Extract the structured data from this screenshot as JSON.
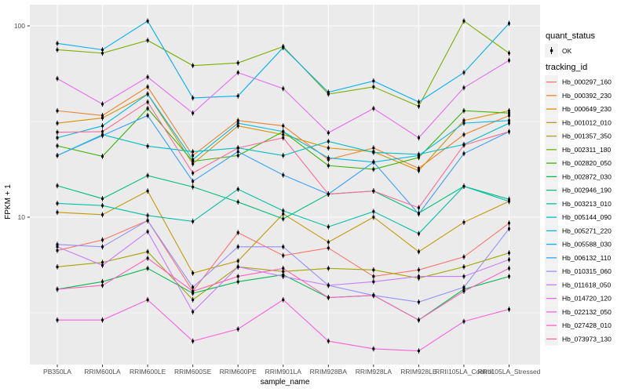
{
  "figure": {
    "x_axis_title": "sample_name",
    "y_axis_title": "FPKM + 1"
  },
  "legend": {
    "quant_status_title": "quant_status",
    "quant_status_items": [
      {
        "label": "OK",
        "glyph": "black-pointrange"
      }
    ],
    "tracking_id_title": "tracking_id"
  },
  "colors": {
    "panel_background": "#EBEBEB",
    "grid_line": "#FFFFFF",
    "legend_key_background": "#F2F2F2",
    "tick_label": "#4D4D4D",
    "axis_title": "#000000",
    "marker": "#000000"
  },
  "chart_data": {
    "type": "line",
    "title": "",
    "xlabel": "sample_name",
    "ylabel": "FPKM + 1",
    "y_scale": "log10",
    "y_tick_values": [
      10,
      100
    ],
    "y_tick_labels": [
      "10",
      "100"
    ],
    "y_minor_tick_values": [
      3.162,
      31.62
    ],
    "ylim": [
      1.68,
      128
    ],
    "grid": "white major and minor gridlines on gray panel",
    "legend_position": "right",
    "point_marker": "black square with short vertical range line",
    "categories": [
      "PB350LA",
      "RRIM600LA",
      "RRIM600LE",
      "RRIM600SE",
      "RRIM600PE",
      "RRIM901LA",
      "RRIM928BA",
      "RRIM928LA",
      "RRIM928LE",
      "RRII105LA_Control",
      "RRII105LA_Stressed"
    ],
    "series": [
      {
        "name": "Hb_000297_160",
        "color": "#F8766D",
        "values": [
          6.7,
          7.6,
          9.6,
          4.1,
          8.3,
          6.3,
          6.9,
          4.9,
          5.3,
          6.2,
          9.3
        ]
      },
      {
        "name": "Hb_000392_230",
        "color": "#EA8331",
        "values": [
          36,
          34,
          48,
          21,
          32,
          30,
          20,
          23,
          18,
          27,
          34
        ]
      },
      {
        "name": "Hb_000649_230",
        "color": "#D89000",
        "values": [
          31,
          33,
          44,
          19,
          30,
          27,
          23,
          22,
          17.5,
          32,
          36
        ]
      },
      {
        "name": "Hb_001012_010",
        "color": "#C09B00",
        "values": [
          10.6,
          10.3,
          13.7,
          5.1,
          5.9,
          10.4,
          7.4,
          10.0,
          6.6,
          9.4,
          12.1
        ]
      },
      {
        "name": "Hb_001357_350",
        "color": "#A3A500",
        "values": [
          5.5,
          5.8,
          6.6,
          3.7,
          5.5,
          5.2,
          5.4,
          5.3,
          4.8,
          5.5,
          6.5
        ]
      },
      {
        "name": "Hb_002311_180",
        "color": "#7CAE00",
        "values": [
          75,
          72,
          84,
          62,
          64,
          78,
          44,
          48,
          38,
          106,
          72
        ]
      },
      {
        "name": "Hb_002820_050",
        "color": "#39B600",
        "values": [
          23.6,
          20.8,
          37,
          19.6,
          21,
          28,
          18.6,
          17.8,
          20.5,
          36,
          35
        ]
      },
      {
        "name": "Hb_002872_030",
        "color": "#00BB4E",
        "values": [
          4.2,
          4.6,
          5.4,
          4.0,
          4.6,
          5.0,
          3.8,
          3.9,
          2.9,
          4.2,
          4.9
        ]
      },
      {
        "name": "Hb_002946_190",
        "color": "#00BF7D",
        "values": [
          14.6,
          12.5,
          16.5,
          14.4,
          12.0,
          9.8,
          13.2,
          13.7,
          10.5,
          14.5,
          12.4
        ]
      },
      {
        "name": "Hb_003213_010",
        "color": "#00C1A3",
        "values": [
          11.8,
          11.5,
          10.2,
          9.5,
          14.0,
          10.8,
          8.9,
          10.7,
          8.2,
          14.5,
          12.1
        ]
      },
      {
        "name": "Hb_005144_090",
        "color": "#00BFC4",
        "values": [
          21,
          27,
          23.5,
          22,
          23,
          21,
          24.9,
          21.8,
          21.3,
          24,
          31
        ]
      },
      {
        "name": "Hb_005271_220",
        "color": "#00BAE0",
        "values": [
          26,
          30,
          44,
          20,
          31,
          28,
          20.4,
          19.4,
          21,
          31,
          32
        ]
      },
      {
        "name": "Hb_005588_030",
        "color": "#00B0F6",
        "values": [
          81,
          75,
          106,
          42,
          43,
          77,
          45,
          51.5,
          40,
          57,
          103
        ]
      },
      {
        "name": "Hb_006132_110",
        "color": "#35A2FF",
        "values": [
          21,
          26.7,
          34,
          15.4,
          22,
          16.6,
          13.2,
          19.4,
          10.4,
          21.5,
          28
        ]
      },
      {
        "name": "Hb_010315_060",
        "color": "#9590FF",
        "values": [
          7.2,
          7.0,
          9.6,
          4.3,
          7.0,
          7.0,
          4.4,
          3.9,
          3.6,
          4.3,
          8.7
        ]
      },
      {
        "name": "Hb_011618_050",
        "color": "#C77CFF",
        "values": [
          7.0,
          5.6,
          8.4,
          3.2,
          5.5,
          4.9,
          4.4,
          4.6,
          4.9,
          4.9,
          6.0
        ]
      },
      {
        "name": "Hb_014720_120",
        "color": "#E76BF3",
        "values": [
          53,
          39,
          54,
          35,
          57,
          47,
          27.6,
          37,
          26,
          47.5,
          66
        ]
      },
      {
        "name": "Hb_022132_050",
        "color": "#FA62DB",
        "values": [
          2.9,
          2.9,
          3.7,
          2.25,
          2.6,
          3.7,
          2.25,
          2.05,
          2.0,
          2.85,
          3.3
        ]
      },
      {
        "name": "Hb_027428_010",
        "color": "#FF62BC",
        "values": [
          4.2,
          4.4,
          6.1,
          4.1,
          4.9,
          5.4,
          3.8,
          3.9,
          2.9,
          4.1,
          5.4
        ]
      },
      {
        "name": "Hb_073973_130",
        "color": "#FF6A98",
        "values": [
          27.8,
          28,
          40,
          17,
          23,
          26,
          13.2,
          13.7,
          11.2,
          23.8,
          28
        ]
      }
    ]
  }
}
